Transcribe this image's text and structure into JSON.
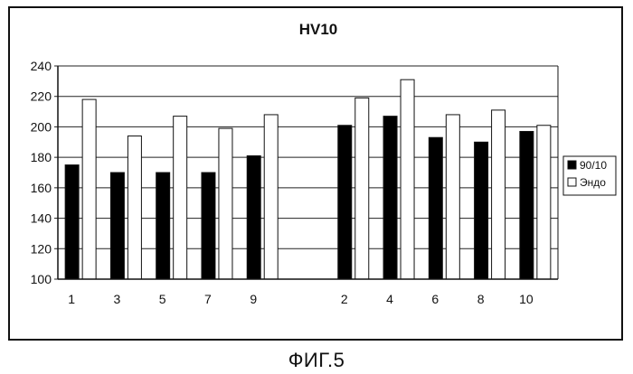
{
  "chart_data": {
    "type": "bar",
    "title": "HV10",
    "caption": "ФИГ.5",
    "categories": [
      "1",
      "3",
      "5",
      "7",
      "9",
      "",
      "2",
      "4",
      "6",
      "8",
      "10"
    ],
    "series": [
      {
        "name": "90/10",
        "color": "#000000",
        "values": [
          175,
          170,
          170,
          170,
          181,
          null,
          201,
          207,
          193,
          190,
          197
        ]
      },
      {
        "name": "Эндо",
        "color": "#ffffff",
        "values": [
          218,
          194,
          207,
          199,
          208,
          null,
          219,
          231,
          208,
          211,
          201
        ]
      }
    ],
    "ylim": [
      100,
      240
    ],
    "yticks": [
      100,
      120,
      140,
      160,
      180,
      200,
      220,
      240
    ],
    "grid": true,
    "legend_position": "right"
  }
}
